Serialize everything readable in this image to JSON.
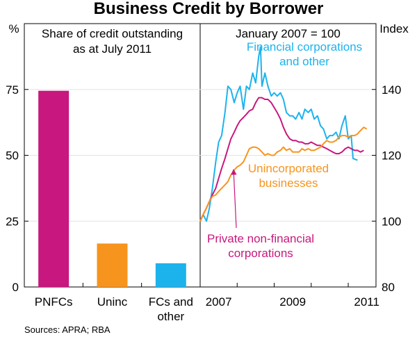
{
  "title": "Business Credit by Borrower",
  "source": "Sources: APRA; RBA",
  "colors": {
    "magenta": "#c8177e",
    "orange": "#f7941d",
    "cyan": "#1cb3ed",
    "bar_pnfc": "#c8177e",
    "bar_uninc": "#f7941d",
    "bar_fc": "#1cb3ed"
  },
  "chart_data": [
    {
      "type": "bar",
      "panel_title": [
        "Share of credit outstanding",
        "as at July 2011"
      ],
      "y_unit": "%",
      "ylim": [
        0,
        100
      ],
      "yticks": [
        0,
        25,
        50,
        75
      ],
      "categories": [
        [
          "PNFCs"
        ],
        [
          "Uninc"
        ],
        [
          "FCs and",
          "other"
        ]
      ],
      "values": [
        74.5,
        16.5,
        9.0
      ]
    },
    {
      "type": "line",
      "panel_title": [
        "January 2007 = 100"
      ],
      "y_unit": "Index",
      "ylim": [
        80,
        160
      ],
      "yticks": [
        80,
        100,
        120,
        140
      ],
      "xlim": [
        2007.0,
        2011.75
      ],
      "xticks": [
        2007,
        2009,
        2011
      ],
      "series": [
        {
          "name": "Financial corporations and other",
          "label_lines": [
            "Financial corporations",
            "and other"
          ],
          "color": "cyan",
          "points": [
            [
              2007.0,
              100
            ],
            [
              2007.08,
              102
            ],
            [
              2007.17,
              100
            ],
            [
              2007.25,
              104
            ],
            [
              2007.33,
              110
            ],
            [
              2007.42,
              118
            ],
            [
              2007.5,
              124
            ],
            [
              2007.58,
              126
            ],
            [
              2007.67,
              133
            ],
            [
              2007.75,
              141
            ],
            [
              2007.83,
              140
            ],
            [
              2007.92,
              136
            ],
            [
              2008.0,
              139
            ],
            [
              2008.08,
              141
            ],
            [
              2008.17,
              134
            ],
            [
              2008.25,
              141
            ],
            [
              2008.33,
              140
            ],
            [
              2008.42,
              145
            ],
            [
              2008.5,
              142
            ],
            [
              2008.58,
              150
            ],
            [
              2008.63,
              153
            ],
            [
              2008.67,
              141
            ],
            [
              2008.75,
              145
            ],
            [
              2008.83,
              141
            ],
            [
              2008.92,
              138
            ],
            [
              2009.0,
              139
            ],
            [
              2009.08,
              138
            ],
            [
              2009.17,
              139
            ],
            [
              2009.25,
              137
            ],
            [
              2009.33,
              133
            ],
            [
              2009.42,
              132
            ],
            [
              2009.5,
              132
            ],
            [
              2009.58,
              131
            ],
            [
              2009.67,
              133
            ],
            [
              2009.75,
              131
            ],
            [
              2009.83,
              134
            ],
            [
              2009.92,
              133
            ],
            [
              2010.0,
              134
            ],
            [
              2010.08,
              131
            ],
            [
              2010.17,
              132
            ],
            [
              2010.25,
              129
            ],
            [
              2010.33,
              128
            ],
            [
              2010.42,
              125
            ],
            [
              2010.5,
              126
            ],
            [
              2010.58,
              126
            ],
            [
              2010.67,
              127
            ],
            [
              2010.75,
              125
            ],
            [
              2010.83,
              129
            ],
            [
              2010.92,
              132
            ],
            [
              2011.0,
              125
            ],
            [
              2011.08,
              126
            ],
            [
              2011.13,
              119
            ],
            [
              2011.25,
              118.5
            ]
          ]
        },
        {
          "name": "Private non-financial corporations",
          "label_lines": [
            "Private non-financial",
            "corporations"
          ],
          "color": "magenta",
          "points": [
            [
              2007.0,
              100
            ],
            [
              2007.08,
              102
            ],
            [
              2007.17,
              104
            ],
            [
              2007.25,
              106
            ],
            [
              2007.33,
              108
            ],
            [
              2007.42,
              110
            ],
            [
              2007.5,
              113
            ],
            [
              2007.58,
              116
            ],
            [
              2007.67,
              119
            ],
            [
              2007.75,
              122
            ],
            [
              2007.83,
              125
            ],
            [
              2007.92,
              127
            ],
            [
              2008.0,
              129
            ],
            [
              2008.08,
              130.5
            ],
            [
              2008.17,
              131.5
            ],
            [
              2008.25,
              132.5
            ],
            [
              2008.33,
              133.5
            ],
            [
              2008.42,
              134
            ],
            [
              2008.5,
              136
            ],
            [
              2008.58,
              137.5
            ],
            [
              2008.67,
              137.5
            ],
            [
              2008.75,
              137
            ],
            [
              2008.83,
              137
            ],
            [
              2008.92,
              136
            ],
            [
              2009.0,
              134.5
            ],
            [
              2009.08,
              133
            ],
            [
              2009.17,
              131
            ],
            [
              2009.25,
              128.5
            ],
            [
              2009.33,
              126.5
            ],
            [
              2009.42,
              125
            ],
            [
              2009.5,
              124.5
            ],
            [
              2009.58,
              124.5
            ],
            [
              2009.67,
              124
            ],
            [
              2009.75,
              124
            ],
            [
              2009.83,
              123.5
            ],
            [
              2009.92,
              123.5
            ],
            [
              2010.0,
              124
            ],
            [
              2010.08,
              123.5
            ],
            [
              2010.17,
              123
            ],
            [
              2010.25,
              123
            ],
            [
              2010.33,
              122.5
            ],
            [
              2010.42,
              122
            ],
            [
              2010.5,
              121.5
            ],
            [
              2010.58,
              121
            ],
            [
              2010.67,
              120.5
            ],
            [
              2010.75,
              120.5
            ],
            [
              2010.83,
              121
            ],
            [
              2010.92,
              122
            ],
            [
              2011.0,
              122.5
            ],
            [
              2011.08,
              122
            ],
            [
              2011.17,
              121.5
            ],
            [
              2011.25,
              121.5
            ],
            [
              2011.33,
              121
            ],
            [
              2011.42,
              121.5
            ]
          ]
        },
        {
          "name": "Unincorporated businesses",
          "label_lines": [
            "Unincorporated",
            "businesses"
          ],
          "color": "orange",
          "points": [
            [
              2007.0,
              100
            ],
            [
              2007.08,
              102
            ],
            [
              2007.17,
              104
            ],
            [
              2007.25,
              106
            ],
            [
              2007.33,
              107.5
            ],
            [
              2007.42,
              108
            ],
            [
              2007.5,
              109
            ],
            [
              2007.58,
              110
            ],
            [
              2007.67,
              111
            ],
            [
              2007.75,
              112
            ],
            [
              2007.83,
              114
            ],
            [
              2007.92,
              115.5
            ],
            [
              2008.0,
              116.5
            ],
            [
              2008.08,
              117
            ],
            [
              2008.17,
              118
            ],
            [
              2008.25,
              120
            ],
            [
              2008.33,
              122
            ],
            [
              2008.42,
              122.5
            ],
            [
              2008.5,
              122.5
            ],
            [
              2008.58,
              122
            ],
            [
              2008.67,
              121
            ],
            [
              2008.75,
              120
            ],
            [
              2008.83,
              120.5
            ],
            [
              2008.92,
              120
            ],
            [
              2009.0,
              120
            ],
            [
              2009.08,
              121
            ],
            [
              2009.17,
              121.5
            ],
            [
              2009.25,
              122.5
            ],
            [
              2009.33,
              121.5
            ],
            [
              2009.42,
              122
            ],
            [
              2009.5,
              121
            ],
            [
              2009.58,
              121
            ],
            [
              2009.67,
              121
            ],
            [
              2009.75,
              122
            ],
            [
              2009.83,
              121.5
            ],
            [
              2009.92,
              122
            ],
            [
              2010.0,
              121.5
            ],
            [
              2010.08,
              121.5
            ],
            [
              2010.17,
              122
            ],
            [
              2010.25,
              122.5
            ],
            [
              2010.33,
              123.5
            ],
            [
              2010.42,
              124.5
            ],
            [
              2010.5,
              124
            ],
            [
              2010.58,
              124
            ],
            [
              2010.67,
              124.5
            ],
            [
              2010.75,
              125.5
            ],
            [
              2010.83,
              126
            ],
            [
              2010.92,
              126
            ],
            [
              2011.0,
              125.5
            ],
            [
              2011.08,
              126
            ],
            [
              2011.17,
              126
            ],
            [
              2011.25,
              126.5
            ],
            [
              2011.33,
              127.5
            ],
            [
              2011.42,
              128.5
            ],
            [
              2011.5,
              128
            ]
          ]
        }
      ]
    }
  ]
}
